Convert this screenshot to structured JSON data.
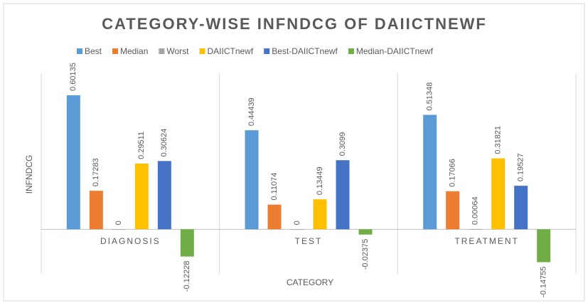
{
  "chart_data": {
    "type": "bar",
    "title": "CATEGORY-WISE INFNDCG OF DAIICTNEWF",
    "x_label": "CATEGORY",
    "y_label": "INFNDCG",
    "categories": [
      "DIAGNOSIS",
      "TEST",
      "TREATMENT"
    ],
    "series": [
      {
        "name": "Best",
        "color": "#5b9bd5",
        "values": [
          0.60135,
          0.44439,
          0.51348
        ]
      },
      {
        "name": "Median",
        "color": "#ed7d31",
        "values": [
          0.17283,
          0.11074,
          0.17066
        ]
      },
      {
        "name": "Worst",
        "color": "#a5a5a5",
        "values": [
          0,
          0,
          0.00064
        ]
      },
      {
        "name": "DAIICTnewf",
        "color": "#ffc000",
        "values": [
          0.29511,
          0.13449,
          0.31821
        ]
      },
      {
        "name": "Best-DAIICTnewf",
        "color": "#4472c4",
        "values": [
          0.30624,
          0.3099,
          0.19527
        ]
      },
      {
        "name": "Median-DAIICTnewf",
        "color": "#70ad47",
        "values": [
          -0.12228,
          -0.02375,
          -0.14755
        ]
      }
    ],
    "ylim": [
      -0.2,
      0.7
    ],
    "legend": "top"
  }
}
